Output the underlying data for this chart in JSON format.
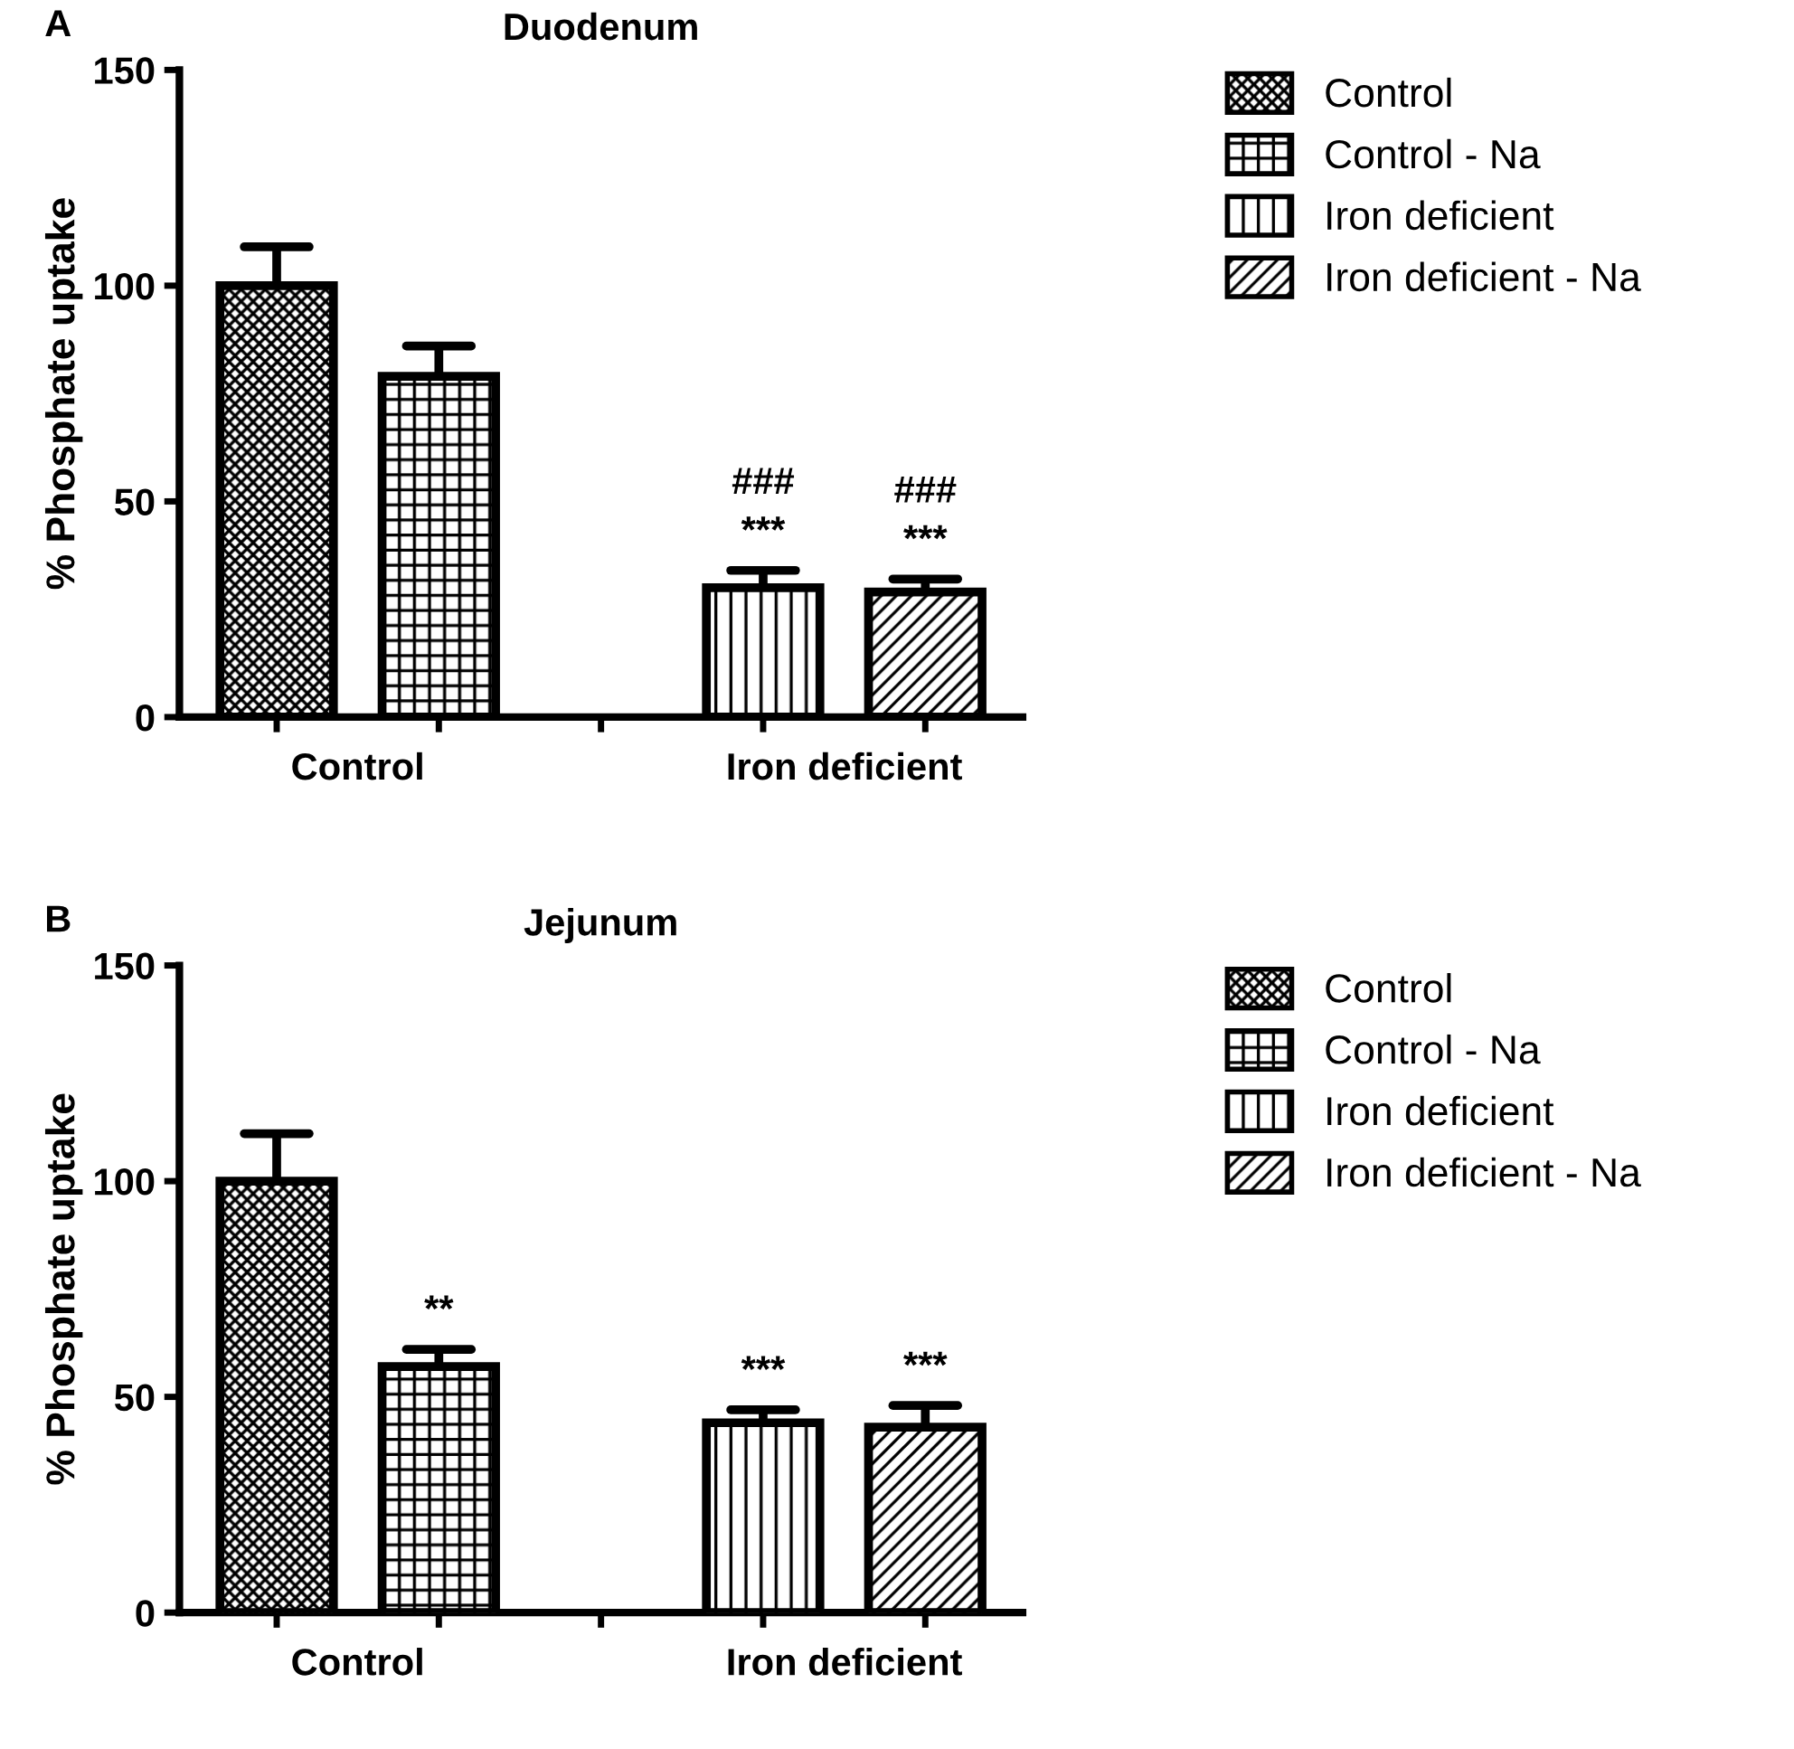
{
  "chart_data": [
    {
      "type": "bar",
      "title": "Duodenum",
      "ylabel": "% Phosphate uptake",
      "categories": [
        "Control",
        "Iron deficient"
      ],
      "ylim": [
        0,
        150
      ],
      "yticks": [
        0,
        50,
        100,
        150
      ],
      "grid": false,
      "legend": "top right",
      "series": [
        {
          "name": "Control",
          "color": "#000000",
          "values": [
            100,
            null
          ],
          "errors": [
            [
              100,
              109
            ],
            null
          ]
        },
        {
          "name": "Control - Na",
          "color": "#000000",
          "values": [
            79,
            null
          ],
          "errors": [
            [
              79,
              86
            ],
            null
          ]
        },
        {
          "name": "Iron deficient",
          "color": "#000000",
          "values": [
            null,
            30
          ],
          "errors": [
            null,
            [
              30,
              34
            ]
          ],
          "value_labels": [
            null,
            "###\n***"
          ]
        },
        {
          "name": "Iron deficient - Na",
          "color": "#000000",
          "values": [
            null,
            29
          ],
          "errors": [
            null,
            [
              29,
              32
            ]
          ],
          "value_labels": [
            null,
            "###\n***"
          ]
        }
      ],
      "annotations": [
        "A"
      ]
    },
    {
      "type": "bar",
      "title": "Jejunum",
      "ylabel": "% Phosphate uptake",
      "categories": [
        "Control",
        "Iron deficient"
      ],
      "ylim": [
        0,
        150
      ],
      "yticks": [
        0,
        50,
        100,
        150
      ],
      "grid": false,
      "legend": "top right",
      "series": [
        {
          "name": "Control",
          "color": "#000000",
          "values": [
            100,
            null
          ],
          "errors": [
            [
              100,
              111
            ],
            null
          ]
        },
        {
          "name": "Control - Na",
          "color": "#000000",
          "values": [
            57,
            null
          ],
          "errors": [
            [
              57,
              61
            ],
            null
          ],
          "value_labels": [
            "**",
            null
          ]
        },
        {
          "name": "Iron deficient",
          "color": "#000000",
          "values": [
            null,
            44
          ],
          "errors": [
            null,
            [
              44,
              47
            ]
          ],
          "value_labels": [
            null,
            "***"
          ]
        },
        {
          "name": "Iron deficient - Na",
          "color": "#000000",
          "values": [
            null,
            43
          ],
          "errors": [
            null,
            [
              43,
              48
            ]
          ],
          "value_labels": [
            null,
            "***"
          ]
        }
      ],
      "annotations": [
        "B"
      ]
    }
  ]
}
